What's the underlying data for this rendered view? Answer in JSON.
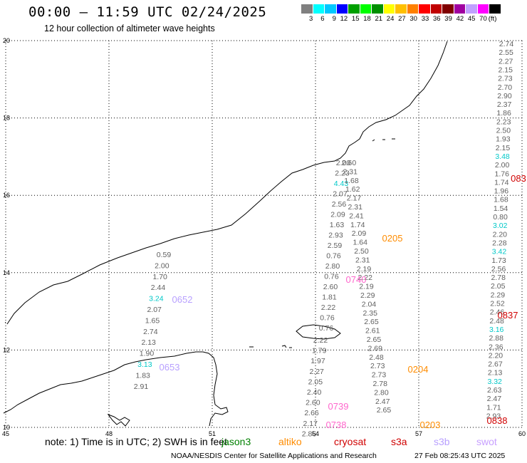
{
  "header": {
    "title": "00:00 – 11:59 UTC 02/24/2025",
    "subtitle": "12 hour collection of altimeter wave heights"
  },
  "scale": {
    "unit": "(ft)",
    "labels": [
      "3",
      "6",
      "9",
      "12",
      "15",
      "18",
      "21",
      "24",
      "27",
      "30",
      "33",
      "36",
      "39",
      "42",
      "45",
      "70"
    ],
    "colors": [
      "#808080",
      "#00ffff",
      "#00c8ff",
      "#0000ff",
      "#00a000",
      "#00ff00",
      "#009000",
      "#ffff00",
      "#ffc000",
      "#ff8000",
      "#ff0000",
      "#c00000",
      "#800000",
      "#a000a0",
      "#c0a0ff",
      "#ff00ff",
      "#000000"
    ]
  },
  "axes": {
    "lon_ticks": [
      "45",
      "48",
      "51",
      "54",
      "57",
      "60"
    ],
    "lat_ticks": [
      "10",
      "12",
      "14",
      "16",
      "18",
      "20"
    ],
    "lon_range": [
      45,
      60
    ],
    "lat_range": [
      10,
      20
    ]
  },
  "tracks": {
    "right": [
      "2.74",
      "2.55",
      "2.27",
      "2.15",
      "2.73",
      "2.70",
      "2.90",
      "2.37",
      "1.86",
      "2.23",
      "2.50",
      "1.93",
      "2.15",
      "3.48",
      "2.00",
      "1.76",
      "1.74",
      "1.96",
      "1.68",
      "1.54",
      "0.80",
      "3.02",
      "2.20",
      "2.28",
      "3.42",
      "1.73",
      "2.56",
      "2.78",
      "2.05",
      "2.29",
      "2.52",
      "2.46",
      "2.48",
      "3.16",
      "2.88",
      "2.36",
      "2.20",
      "2.67",
      "2.13",
      "3.32",
      "2.63",
      "2.47",
      "1.71",
      "2.93"
    ],
    "center_a": [
      "2.00",
      "2.23",
      "4.43",
      "2.07",
      "2.56",
      "2.09",
      "1.63",
      "2.93",
      "2.59",
      "0.76",
      "2.80",
      "0.76",
      "2.60",
      "1.81",
      "2.22",
      "0.76",
      "0.76"
    ],
    "center_b": [
      "2.60",
      "2.31",
      "1.68",
      "1.62",
      "2.17",
      "2.31",
      "2.41",
      "1.74",
      "2.09",
      "1.64",
      "2.50",
      "2.31",
      "2.19",
      "2.22",
      "2.19",
      "2.29",
      "2.04",
      "2.35",
      "2.65",
      "2.61",
      "2.65",
      "2.69",
      "2.48",
      "2.73",
      "2.73",
      "2.78",
      "2.80",
      "2.47",
      "2.65"
    ],
    "lower_center": [
      "2.22",
      "1.79",
      "1.97",
      "2.27",
      "2.05",
      "2.40",
      "2.60",
      "2.66",
      "2.17",
      "2.86"
    ],
    "left": [
      "0.59",
      "2.00",
      "1.70",
      "2.44",
      "3.24",
      "2.07",
      "1.65",
      "2.74",
      "2.13",
      "1.90",
      "3.13",
      "1.83",
      "2.91"
    ]
  },
  "pass_labels": [
    {
      "text": "0205",
      "sat": "altiko"
    },
    {
      "text": "0740",
      "sat": "s3b-pink"
    },
    {
      "text": "0652",
      "sat": "s3b"
    },
    {
      "text": "0653",
      "sat": "s3b"
    },
    {
      "text": "0204",
      "sat": "altiko"
    },
    {
      "text": "0739",
      "sat": "s3b-pink"
    },
    {
      "text": "0738",
      "sat": "s3b-pink"
    },
    {
      "text": "0203",
      "sat": "altiko"
    },
    {
      "text": "083",
      "sat": "s3a"
    },
    {
      "text": "0837",
      "sat": "s3a"
    },
    {
      "text": "0838",
      "sat": "s3a"
    }
  ],
  "legend": {
    "note": "note: 1) Time is in UTC; 2) SWH is in feet",
    "jason3": "jason3",
    "altiko": "altiko",
    "cryosat": "cryosat",
    "s3a": "s3a",
    "s3b": "s3b",
    "swot": "swot",
    "colors": {
      "jason3": "#008000",
      "altiko": "#ff8c00",
      "cryosat": "#d00000",
      "s3a": "#d00000",
      "s3b": "#b8a0ff",
      "swot": "#c8a0ff",
      "pink": "#ff66cc",
      "cyan": "#00c8c8",
      "gray": "#606060"
    }
  },
  "footer": {
    "credit": "NOAA/NESDIS Center for Satellite Applications and Research",
    "timestamp": "27 Feb 08:25:43 UTC 2025"
  }
}
